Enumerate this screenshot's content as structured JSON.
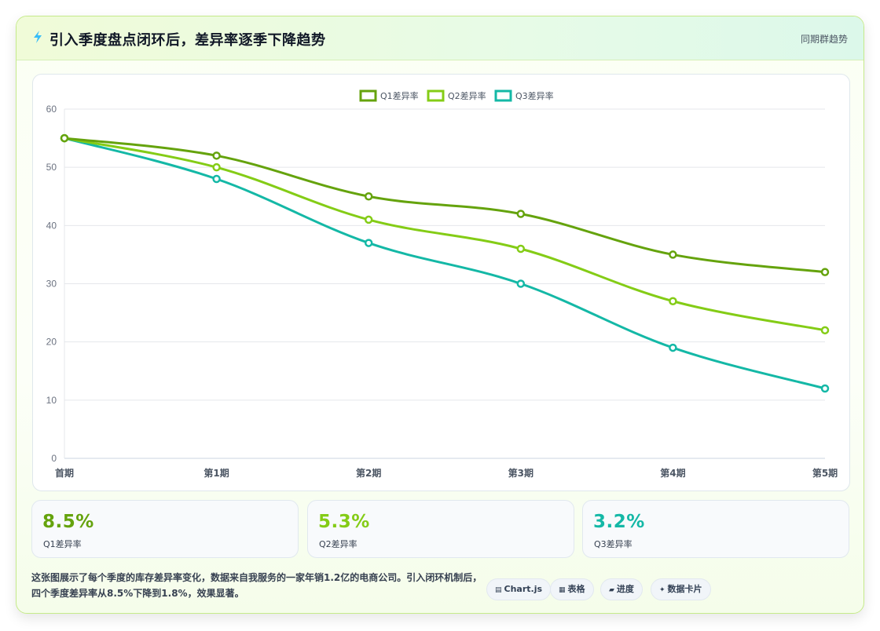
{
  "header": {
    "title": "引入季度盘点闭环后，差异率逐季下降趋势",
    "link": "同期群趋势",
    "icon": "lightning-icon"
  },
  "colors": {
    "q1": "#65a30d",
    "q2": "#84cc16",
    "q3": "#14b8a6"
  },
  "chart_data": {
    "type": "line",
    "categories": [
      "首期",
      "第1期",
      "第2期",
      "第3期",
      "第4期",
      "第5期"
    ],
    "series": [
      {
        "name": "Q1差异率",
        "values": [
          55,
          52,
          45,
          42,
          35,
          32
        ]
      },
      {
        "name": "Q2差异率",
        "values": [
          55,
          50,
          41,
          36,
          27,
          22
        ]
      },
      {
        "name": "Q3差异率",
        "values": [
          55,
          48,
          37,
          30,
          19,
          12
        ]
      }
    ],
    "ylim": [
      0,
      60
    ],
    "yticks": [
      0,
      10,
      20,
      30,
      40,
      50,
      60
    ],
    "grid": true,
    "legend": "top-center",
    "title": "",
    "xlabel": "",
    "ylabel": ""
  },
  "kpis": [
    {
      "value": "8.5%",
      "label": "Q1差异率"
    },
    {
      "value": "5.3%",
      "label": "Q2差异率"
    },
    {
      "value": "3.2%",
      "label": "Q3差异率"
    }
  ],
  "description": "这张图展示了每个季度的库存差异率变化，数据来自我服务的一家年销1.2亿的电商公司。引入闭环机制后，四个季度差异率从8.5%下降到1.8%，效果显著。",
  "chips": [
    {
      "icon": "chart-icon",
      "label": "Chart.js"
    },
    {
      "icon": "table-icon",
      "label": "表格"
    },
    {
      "icon": "progress-icon",
      "label": "进度"
    },
    {
      "icon": "data-card-icon",
      "label": "数据卡片"
    }
  ]
}
